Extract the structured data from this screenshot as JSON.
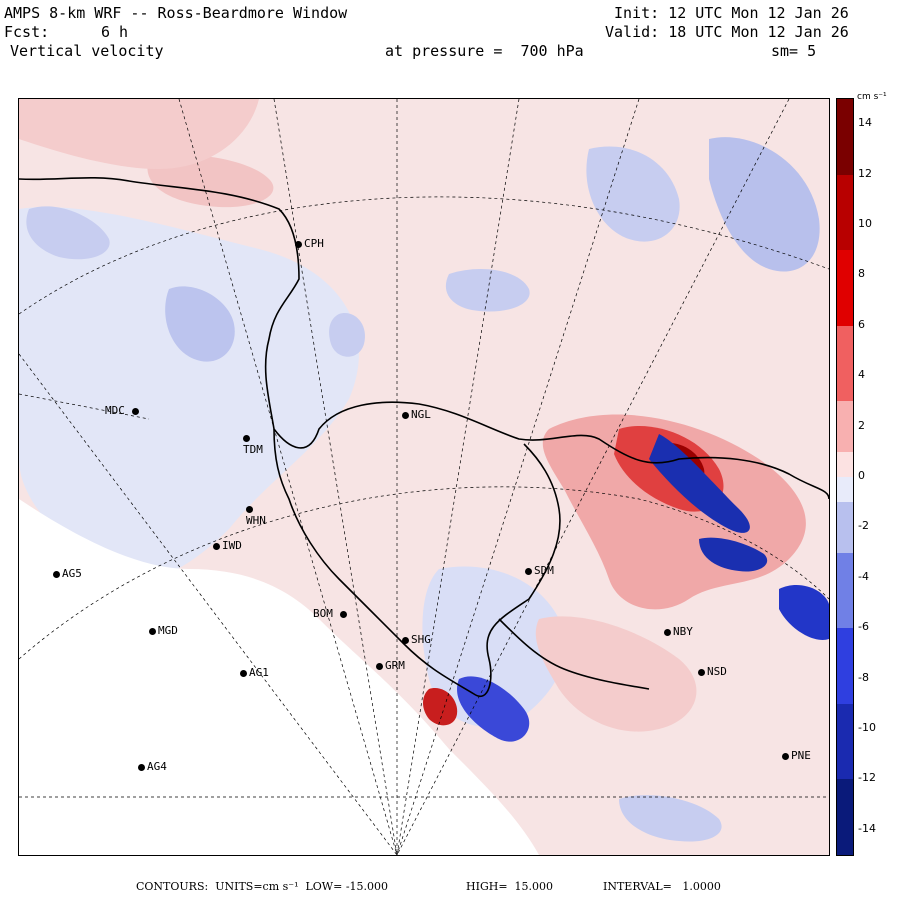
{
  "header": {
    "title": "AMPS 8-km WRF -- Ross-Beardmore Window",
    "fcst_label": "Fcst:",
    "fcst_value": "6 h",
    "variable": "Vertical velocity",
    "init": "Init: 12 UTC Mon 12 Jan 26",
    "valid": "Valid: 18 UTC Mon 12 Jan 26",
    "level": "at pressure =  700 hPa",
    "smoothing": "sm= 5"
  },
  "stations": [
    {
      "id": "CPH",
      "label": "CPH"
    },
    {
      "id": "MDC",
      "label": "MDC"
    },
    {
      "id": "TDM",
      "label": "TDM"
    },
    {
      "id": "NGL",
      "label": "NGL"
    },
    {
      "id": "WHN",
      "label": "WHN"
    },
    {
      "id": "IWD",
      "label": "IWD"
    },
    {
      "id": "AG5",
      "label": "AG5"
    },
    {
      "id": "SDM",
      "label": "SDM"
    },
    {
      "id": "BOM",
      "label": "BOM"
    },
    {
      "id": "MGD",
      "label": "MGD"
    },
    {
      "id": "SHG",
      "label": "SHG"
    },
    {
      "id": "GRM",
      "label": "GRM"
    },
    {
      "id": "AG1",
      "label": "AG1"
    },
    {
      "id": "NBY",
      "label": "NBY"
    },
    {
      "id": "NSD",
      "label": "NSD"
    },
    {
      "id": "PNE",
      "label": "PNE"
    },
    {
      "id": "AG4",
      "label": "AG4"
    }
  ],
  "colorbar": {
    "units_label": "cm s⁻¹",
    "ticks": [
      "14",
      "12",
      "10",
      "8",
      "6",
      "4",
      "2",
      "0",
      "-2",
      "-4",
      "-6",
      "-8",
      "-10",
      "-12",
      "-14"
    ],
    "colors": {
      "strong_pos": "#7a0000",
      "pos": "#e41a1a",
      "weak_pos": "#f4b8b8",
      "neutral": "#ffffff",
      "weak_neg": "#c7cdf0",
      "neg": "#2f3fe0",
      "strong_neg": "#0a1a7a"
    }
  },
  "footer": {
    "contours": "CONTOURS:  UNITS=cm s⁻¹  LOW= -15.000",
    "high": "HIGH=  15.000",
    "interval": "INTERVAL=   1.0000"
  }
}
